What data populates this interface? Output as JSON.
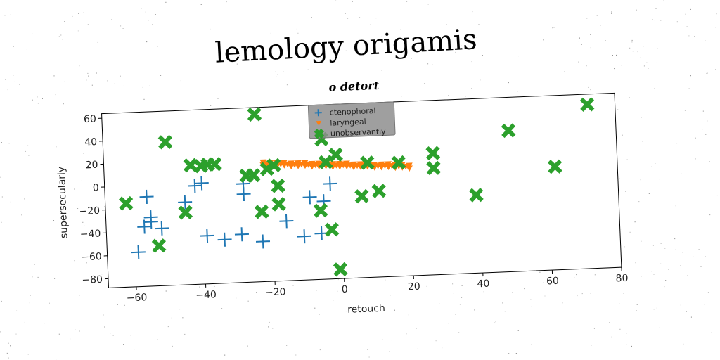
{
  "chart_data": {
    "type": "scatter",
    "title": "lemology origamis",
    "subtitle": "o detort",
    "xlabel": "retouch",
    "ylabel": "supersecularly",
    "xlim": [
      -68,
      80
    ],
    "ylim": [
      -88,
      64
    ],
    "x_ticks": [
      -60,
      -40,
      -20,
      0,
      20,
      40,
      60,
      80
    ],
    "y_ticks": [
      60,
      40,
      20,
      0,
      -20,
      -40,
      -60,
      -80
    ],
    "grid": false,
    "legend_position": "top-center",
    "series": [
      {
        "name": "ctenophoral",
        "marker": "plus",
        "color": "#1f77b4",
        "points": [
          [
            -56,
            -10
          ],
          [
            -59,
            -58
          ],
          [
            -57,
            -36
          ],
          [
            -55,
            -28
          ],
          [
            -55,
            -32
          ],
          [
            -52,
            -38
          ],
          [
            -45,
            -16
          ],
          [
            -42,
            -2
          ],
          [
            -40,
            0
          ],
          [
            -39,
            -46
          ],
          [
            -34,
            -50
          ],
          [
            -29,
            -46
          ],
          [
            -28,
            -2
          ],
          [
            -28,
            -11
          ],
          [
            -23,
            -53
          ],
          [
            -16,
            -36
          ],
          [
            -11,
            -50
          ],
          [
            -9,
            -16
          ],
          [
            -6,
            -48
          ],
          [
            -5,
            -20
          ],
          [
            -3,
            -5
          ]
        ]
      },
      {
        "name": "laryngeal",
        "marker": "triangle",
        "color": "#ff7f0e",
        "points": [
          [
            -22,
            16
          ],
          [
            -20,
            15
          ],
          [
            -18,
            15
          ],
          [
            -16,
            15
          ],
          [
            -14,
            14
          ],
          [
            -12,
            14
          ],
          [
            -10,
            14
          ],
          [
            -8,
            13
          ],
          [
            -6,
            13
          ],
          [
            -4,
            13
          ],
          [
            -2,
            12
          ],
          [
            0,
            12
          ],
          [
            2,
            12
          ],
          [
            4,
            11
          ],
          [
            6,
            11
          ],
          [
            8,
            11
          ],
          [
            10,
            10
          ],
          [
            12,
            10
          ],
          [
            14,
            10
          ],
          [
            16,
            9
          ],
          [
            18,
            9
          ],
          [
            20,
            8
          ]
        ]
      },
      {
        "name": "unobservantly",
        "marker": "x",
        "color": "#2ca02c",
        "points": [
          [
            -62,
            -15
          ],
          [
            -53,
            -53
          ],
          [
            -50,
            37
          ],
          [
            -45,
            -25
          ],
          [
            -43,
            16
          ],
          [
            -40,
            15
          ],
          [
            -38,
            16
          ],
          [
            -36,
            16
          ],
          [
            -27,
            5
          ],
          [
            -25,
            5
          ],
          [
            -24,
            58
          ],
          [
            -23,
            -27
          ],
          [
            -21,
            10
          ],
          [
            -19,
            13
          ],
          [
            -18,
            -5
          ],
          [
            -18,
            -21
          ],
          [
            -6,
            -28
          ],
          [
            -5,
            34
          ],
          [
            -4,
            14
          ],
          [
            -3,
            -45
          ],
          [
            -1,
            20
          ],
          [
            -1,
            -80
          ],
          [
            6,
            -17
          ],
          [
            8,
            12
          ],
          [
            11,
            -13
          ],
          [
            17,
            11
          ],
          [
            27,
            18
          ],
          [
            27,
            5
          ],
          [
            39,
            -20
          ],
          [
            49,
            35
          ],
          [
            62,
            2
          ],
          [
            72,
            55
          ]
        ]
      }
    ]
  }
}
